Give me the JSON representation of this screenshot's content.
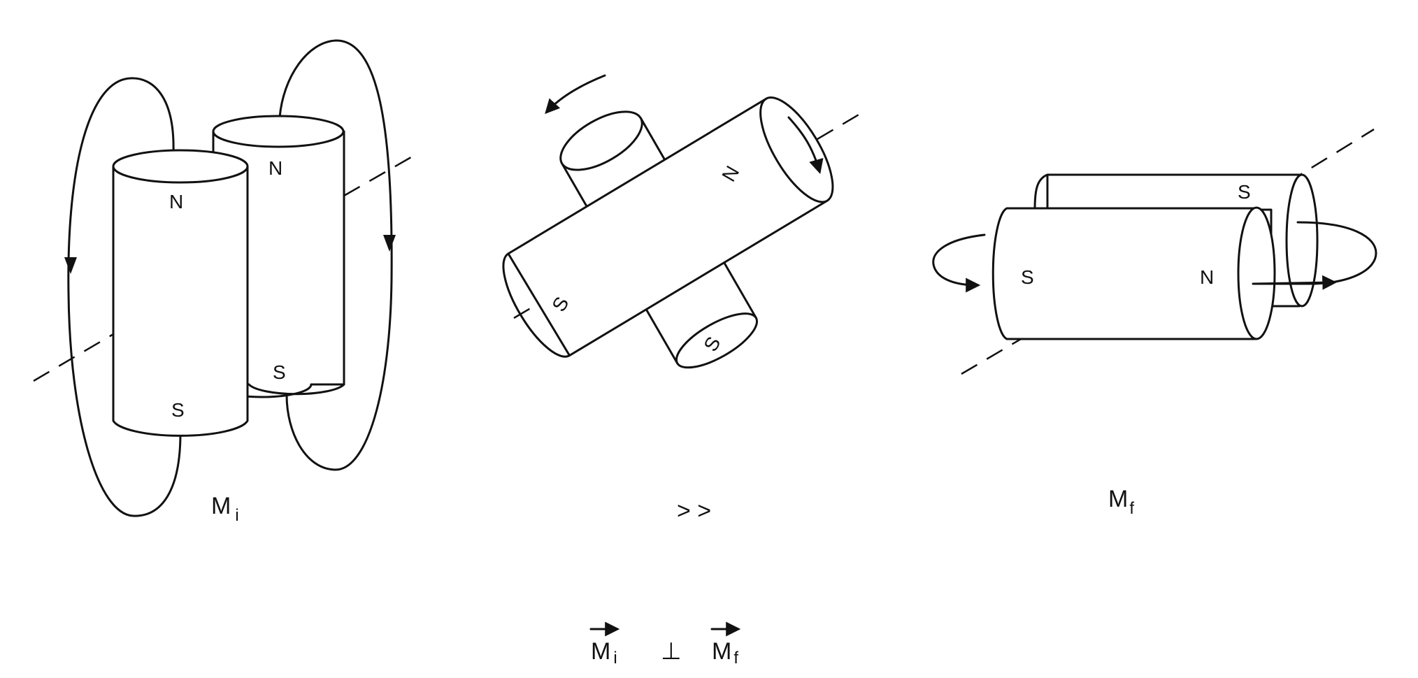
{
  "labels": {
    "north": "N",
    "south": "S"
  },
  "captions": {
    "left": {
      "main": "M",
      "sub": "i"
    },
    "middle": "> >",
    "right": {
      "main": "M",
      "sub": "f"
    }
  },
  "relation": {
    "left_main": "M",
    "left_sub": "i",
    "symbol": "⊥",
    "right_main": "M",
    "right_sub": "f"
  }
}
